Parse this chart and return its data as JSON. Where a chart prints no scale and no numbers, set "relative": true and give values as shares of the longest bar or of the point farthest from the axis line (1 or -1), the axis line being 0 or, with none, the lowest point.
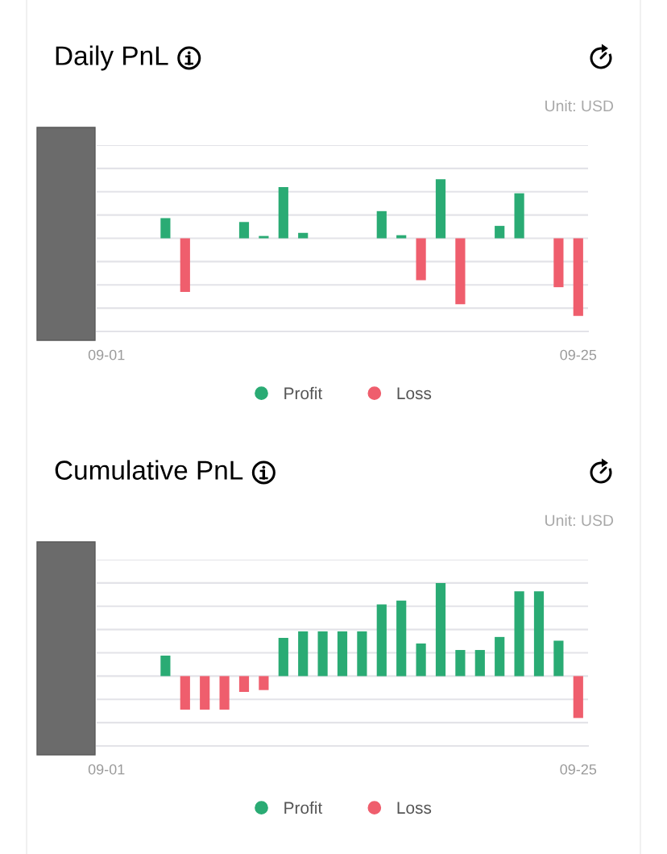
{
  "chart_data": [
    {
      "type": "bar",
      "title": "Daily PnL",
      "annotations": [
        "Unit: USD"
      ],
      "categories": [
        "09-01",
        null,
        null,
        null,
        null,
        null,
        null,
        null,
        null,
        null,
        null,
        null,
        null,
        null,
        null,
        null,
        null,
        null,
        null,
        null,
        null,
        null,
        null,
        null,
        "09-25"
      ],
      "series": [
        {
          "name": "Profit",
          "color": "#2aab74",
          "values": [
            null,
            null,
            null,
            0.26,
            null,
            null,
            null,
            0.21,
            0.03,
            0.66,
            0.07,
            null,
            null,
            null,
            0.35,
            0.04,
            null,
            0.76,
            null,
            null,
            0.16,
            0.58,
            null,
            null,
            null
          ]
        },
        {
          "name": "Loss",
          "color": "#ef5e6d",
          "values": [
            null,
            null,
            null,
            null,
            -0.69,
            null,
            null,
            null,
            null,
            null,
            null,
            null,
            null,
            null,
            null,
            null,
            -0.54,
            null,
            -0.85,
            null,
            null,
            null,
            null,
            -0.63,
            -1
          ]
        }
      ],
      "relative": true,
      "grid": "y",
      "legend": "bottom",
      "tick_labels": "x"
    },
    {
      "type": "bar",
      "title": "Cumulative PnL",
      "annotations": [
        "Unit: USD"
      ],
      "categories": [
        "09-01",
        null,
        null,
        null,
        null,
        null,
        null,
        null,
        null,
        null,
        null,
        null,
        null,
        null,
        null,
        null,
        null,
        null,
        null,
        null,
        null,
        null,
        null,
        null,
        "09-25"
      ],
      "series": [
        {
          "name": "Profit",
          "color": "#2aab74",
          "values": [
            null,
            null,
            null,
            0.22,
            null,
            null,
            null,
            null,
            null,
            0.41,
            0.48,
            0.48,
            0.48,
            0.48,
            0.77,
            0.81,
            0.35,
            1,
            0.28,
            0.28,
            0.42,
            0.91,
            0.91,
            0.38,
            null
          ]
        },
        {
          "name": "Loss",
          "color": "#ef5e6d",
          "values": [
            null,
            null,
            null,
            null,
            -0.36,
            -0.36,
            -0.36,
            -0.17,
            -0.15,
            null,
            null,
            null,
            null,
            null,
            null,
            null,
            null,
            null,
            null,
            null,
            null,
            null,
            null,
            null,
            -0.45
          ]
        }
      ],
      "relative": true,
      "grid": "y",
      "legend": "bottom",
      "tick_labels": "x"
    }
  ]
}
